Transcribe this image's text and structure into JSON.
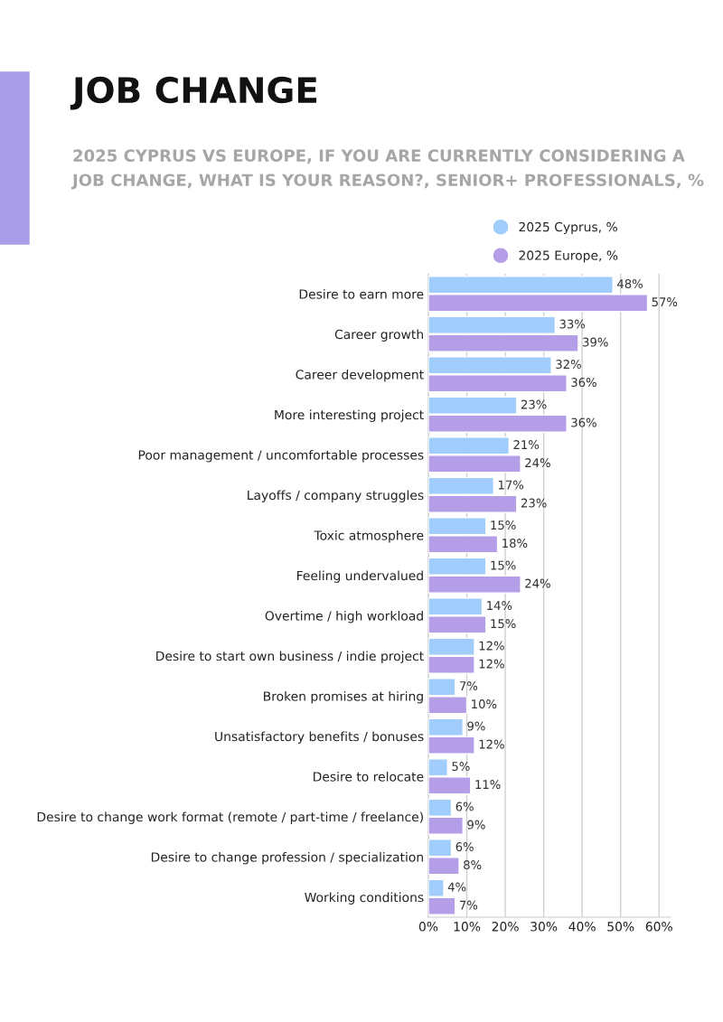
{
  "chart_data": {
    "type": "bar",
    "orientation": "horizontal",
    "title": "JOB CHANGE",
    "subtitle": "2025 CYPRUS VS EUROPE, IF YOU ARE CURRENTLY CONSIDERING A JOB CHANGE, WHAT IS YOUR REASON?, SENIOR+ PROFESSIONALS, %",
    "categories": [
      "Desire to earn more",
      "Career growth",
      "Career development",
      "More interesting project",
      "Poor management / uncomfortable processes",
      "Layoffs / company struggles",
      "Toxic atmosphere",
      "Feeling undervalued",
      "Overtime / high workload",
      "Desire to start own business / indie project",
      "Broken promises at hiring",
      "Unsatisfactory benefits / bonuses",
      "Desire to relocate",
      "Desire to change work format (remote / part-time / freelance)",
      "Desire to change profession / specialization",
      "Working conditions"
    ],
    "series": [
      {
        "name": "2025 Cyprus, %",
        "color": "#a0cdfb",
        "values": [
          48,
          33,
          32,
          23,
          21,
          17,
          15,
          15,
          14,
          12,
          7,
          9,
          5,
          6,
          6,
          4
        ],
        "value_labels": [
          "48%",
          "33%",
          "32%",
          "23%",
          "21%",
          "17%",
          "15%",
          "15%",
          "14%",
          "12%",
          "7%",
          "9%",
          "5%",
          "6%",
          "6%",
          "4%"
        ]
      },
      {
        "name": "2025 Europe, %",
        "color": "#b59ee8",
        "values": [
          57,
          39,
          36,
          36,
          24,
          23,
          18,
          24,
          15,
          12,
          10,
          12,
          11,
          9,
          8,
          7
        ],
        "value_labels": [
          "57%",
          "39%",
          "36%",
          "36%",
          "24%",
          "23%",
          "18%",
          "24%",
          "15%",
          "12%",
          "10%",
          "12%",
          "11%",
          "9%",
          "8%",
          "7%"
        ]
      }
    ],
    "xlim": [
      0,
      63
    ],
    "xticks": [
      {
        "value": 0,
        "label": "0%"
      },
      {
        "value": 10,
        "label": "10%"
      },
      {
        "value": 20,
        "label": "20%"
      },
      {
        "value": 30,
        "label": "30%"
      },
      {
        "value": 40,
        "label": "40%"
      },
      {
        "value": 50,
        "label": "50%"
      },
      {
        "value": 60,
        "label": "60%"
      }
    ],
    "grid": "x",
    "legend": "top right",
    "marker": "circle"
  }
}
